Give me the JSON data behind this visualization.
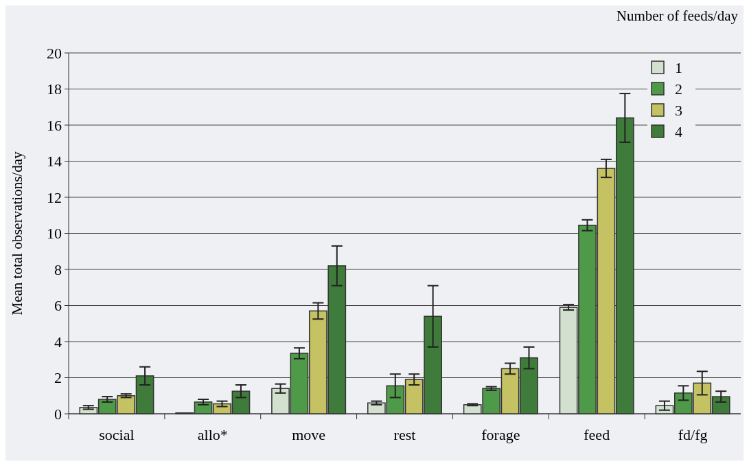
{
  "chart_data": {
    "type": "bar",
    "ylabel": "Mean total observations/day",
    "legend_title": "Number of feeds/day",
    "categories": [
      "social",
      "allo*",
      "move",
      "rest",
      "forage",
      "feed",
      "fd/fg"
    ],
    "series": [
      {
        "name": "1",
        "color": "#d3e0d0",
        "values": [
          0.35,
          0.05,
          1.4,
          0.6,
          0.5,
          5.9,
          0.45
        ],
        "errors": [
          0.1,
          null,
          0.25,
          0.1,
          0.05,
          0.15,
          0.25
        ]
      },
      {
        "name": "2",
        "color": "#4e9a48",
        "values": [
          0.8,
          0.65,
          3.35,
          1.55,
          1.4,
          10.45,
          1.15
        ],
        "errors": [
          0.15,
          0.15,
          0.3,
          0.65,
          0.1,
          0.3,
          0.4
        ]
      },
      {
        "name": "3",
        "color": "#c4c262",
        "values": [
          1.0,
          0.55,
          5.7,
          1.9,
          2.5,
          13.6,
          1.7
        ],
        "errors": [
          0.1,
          0.15,
          0.45,
          0.3,
          0.3,
          0.5,
          0.65
        ]
      },
      {
        "name": "4",
        "color": "#3f7b3a",
        "values": [
          2.1,
          1.25,
          8.2,
          5.4,
          3.1,
          16.4,
          0.95
        ],
        "errors": [
          0.5,
          0.35,
          1.1,
          1.7,
          0.6,
          1.35,
          0.3
        ]
      }
    ],
    "ylim": [
      0,
      20
    ],
    "yticks": [
      0,
      2,
      4,
      6,
      8,
      10,
      12,
      14,
      16,
      18,
      20
    ],
    "grid": "y",
    "legend": "top right"
  }
}
